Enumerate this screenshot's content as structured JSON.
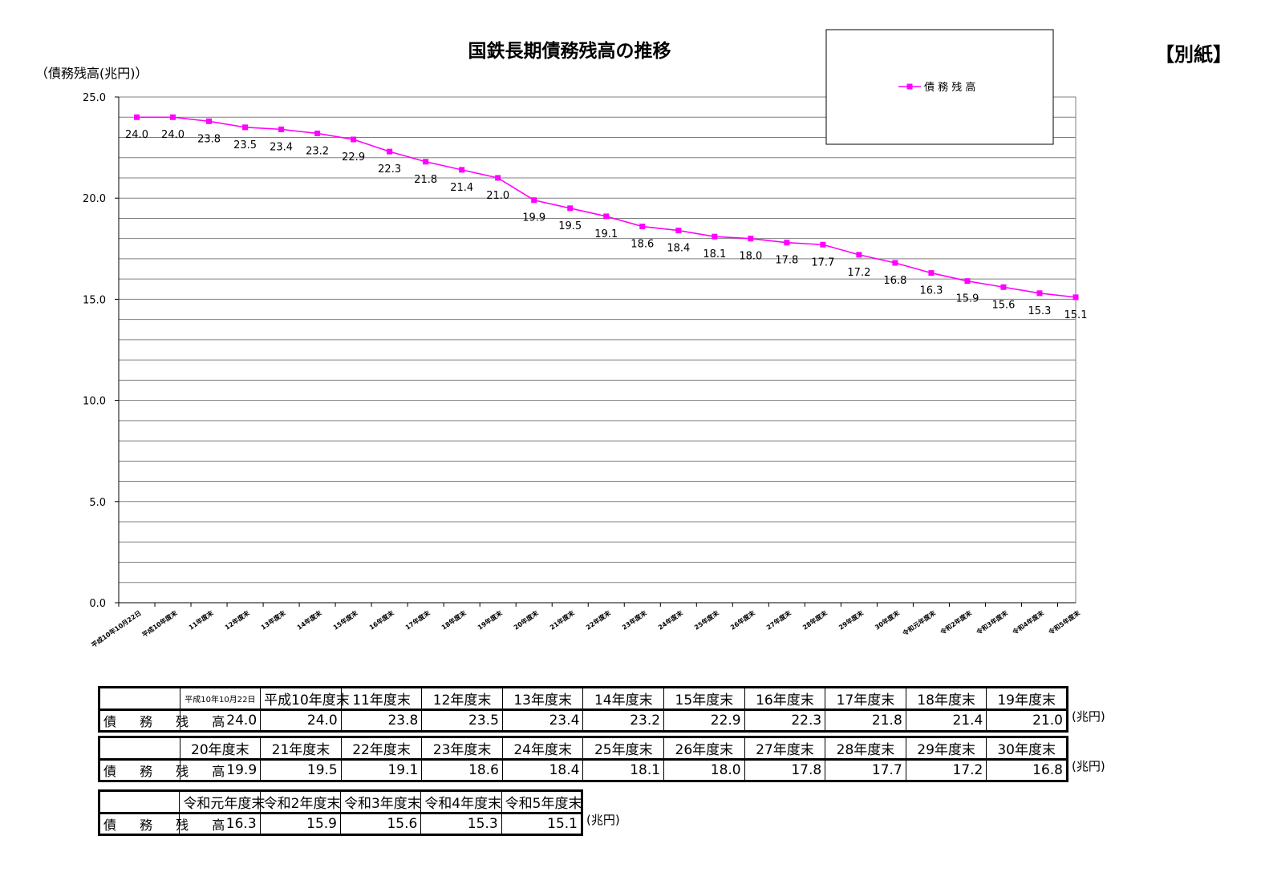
{
  "header": {
    "title": "国鉄長期債務残高の推移",
    "attachment": "【別紙】",
    "y_unit": "（債務残高(兆円)）"
  },
  "chart_data": {
    "type": "line",
    "title": "国鉄長期債務残高の推移",
    "ylabel": "（債務残高(兆円)）",
    "ylim": [
      0,
      25
    ],
    "yticks": [
      "0.0",
      "5.0",
      "10.0",
      "15.0",
      "20.0",
      "25.0"
    ],
    "grid": true,
    "legend_position": "top-right",
    "line_color": "#FF00FF",
    "categories": [
      "平成10年10月22日",
      "平成10年度末",
      "11年度末",
      "12年度末",
      "13年度末",
      "14年度末",
      "15年度末",
      "16年度末",
      "17年度末",
      "18年度末",
      "19年度末",
      "20年度末",
      "21年度末",
      "22年度末",
      "23年度末",
      "24年度末",
      "25年度末",
      "26年度末",
      "27年度末",
      "28年度末",
      "29年度末",
      "30年度末",
      "令和元年度末",
      "令和2年度末",
      "令和3年度末",
      "令和4年度末",
      "令和5年度末"
    ],
    "series": [
      {
        "name": "債 務 残 高",
        "values": [
          24.0,
          24.0,
          23.8,
          23.5,
          23.4,
          23.2,
          22.9,
          22.3,
          21.8,
          21.4,
          21.0,
          19.9,
          19.5,
          19.1,
          18.6,
          18.4,
          18.1,
          18.0,
          17.8,
          17.7,
          17.2,
          16.8,
          16.3,
          15.9,
          15.6,
          15.3,
          15.1
        ]
      }
    ]
  },
  "tables": {
    "row_label": "債 務 残 高",
    "unit": "(兆円)",
    "blocks": [
      {
        "headers": [
          "平成10年10月22日",
          "平成10年度末",
          "11年度末",
          "12年度末",
          "13年度末",
          "14年度末",
          "15年度末",
          "16年度末",
          "17年度末",
          "18年度末",
          "19年度末"
        ],
        "values": [
          "24.0",
          "24.0",
          "23.8",
          "23.5",
          "23.4",
          "23.2",
          "22.9",
          "22.3",
          "21.8",
          "21.4",
          "21.0"
        ]
      },
      {
        "headers": [
          "20年度末",
          "21年度末",
          "22年度末",
          "23年度末",
          "24年度末",
          "25年度末",
          "26年度末",
          "27年度末",
          "28年度末",
          "29年度末",
          "30年度末"
        ],
        "values": [
          "19.9",
          "19.5",
          "19.1",
          "18.6",
          "18.4",
          "18.1",
          "18.0",
          "17.8",
          "17.7",
          "17.2",
          "16.8"
        ]
      },
      {
        "headers": [
          "令和元年度末",
          "令和2年度末",
          "令和3年度末",
          "令和4年度末",
          "令和5年度末"
        ],
        "values": [
          "16.3",
          "15.9",
          "15.6",
          "15.3",
          "15.1"
        ]
      }
    ]
  }
}
